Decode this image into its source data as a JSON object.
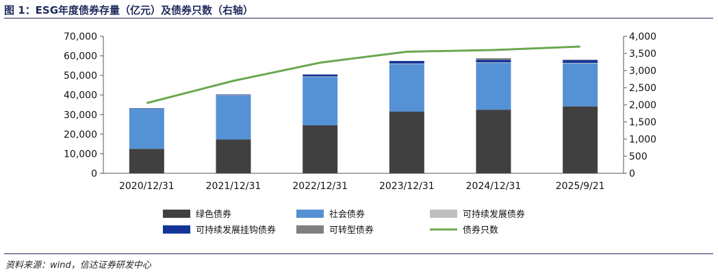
{
  "title": "图 1：ESG年度债券存量（亿元）及债券只数（右轴）",
  "source": "资料来源：wind，信达证券研发中心",
  "chart_data": {
    "type": "bar",
    "stacked": true,
    "categories": [
      "2020/12/31",
      "2021/12/31",
      "2022/12/31",
      "2023/12/31",
      "2024/12/31",
      "2025/9/21"
    ],
    "y_left": {
      "ylim": [
        0,
        70000
      ],
      "ticks": [
        "0",
        "10,000",
        "20,000",
        "30,000",
        "40,000",
        "50,000",
        "60,000",
        "70,000"
      ]
    },
    "y_right": {
      "ylim": [
        0,
        4000
      ],
      "ticks": [
        "0",
        "500",
        "1,000",
        "1,500",
        "2,000",
        "2,500",
        "3,000",
        "3,500",
        "4,000"
      ]
    },
    "series": [
      {
        "name": "绿色债券",
        "color": "#404040",
        "axis": "left",
        "kind": "bar",
        "values": [
          12500,
          17300,
          24500,
          31500,
          32500,
          34200
        ]
      },
      {
        "name": "社会债券",
        "color": "#5591d5",
        "axis": "left",
        "kind": "bar",
        "values": [
          20500,
          22600,
          24700,
          24300,
          23900,
          21900
        ]
      },
      {
        "name": "可持续发展债券",
        "color": "#bfbfbf",
        "axis": "left",
        "kind": "bar",
        "values": [
          100,
          100,
          300,
          300,
          300,
          300
        ]
      },
      {
        "name": "可持续发展挂钩债券",
        "color": "#13359a",
        "axis": "left",
        "kind": "bar",
        "values": [
          100,
          300,
          1000,
          1300,
          1300,
          1400
        ]
      },
      {
        "name": "可转型债券",
        "color": "#7f7f7f",
        "axis": "left",
        "kind": "bar",
        "values": [
          0,
          0,
          0,
          0,
          800,
          300
        ]
      },
      {
        "name": "债券只数",
        "color": "#6aa84f",
        "axis": "right",
        "kind": "line",
        "values": [
          2050,
          2700,
          3230,
          3550,
          3600,
          3700
        ]
      }
    ],
    "legend_position": "bottom",
    "grid": false
  }
}
